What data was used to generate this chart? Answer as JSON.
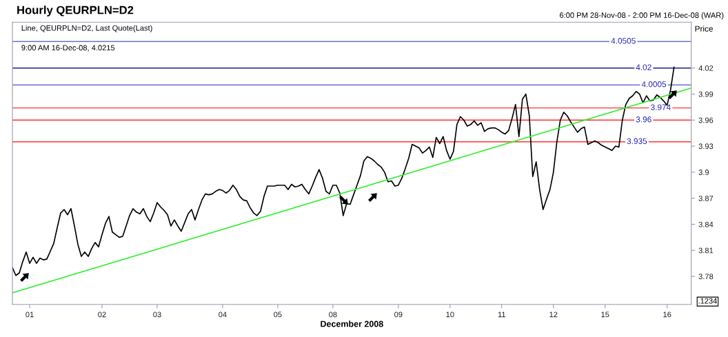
{
  "chart_data": {
    "type": "line",
    "title": "Hourly QEURPLN=D2",
    "subtitle": "6:00 PM 28-Nov-08 - 2:00 PM 16-Dec-08 (WAR)",
    "xlabel": "December 2008",
    "ylabel": "Price",
    "annotations": [
      "Line, QEURPLN=D2, Last Quote(Last)",
      "9:00 AM 16-Dec-08, 4.0215",
      ".1234"
    ],
    "categories": [
      null,
      null,
      null,
      null,
      null,
      "01",
      null,
      null,
      null,
      null,
      null,
      null,
      null,
      null,
      null,
      null,
      null,
      null,
      null,
      null,
      null,
      null,
      null,
      null,
      null,
      null,
      "02",
      null,
      null,
      null,
      null,
      null,
      null,
      null,
      null,
      null,
      null,
      null,
      null,
      null,
      null,
      null,
      "03",
      null,
      null,
      null,
      null,
      null,
      null,
      null,
      null,
      null,
      null,
      null,
      null,
      null,
      null,
      null,
      null,
      null,
      null,
      "04",
      null,
      null,
      null,
      null,
      null,
      null,
      null,
      null,
      null,
      null,
      null,
      null,
      null,
      null,
      null,
      "05",
      null,
      null,
      null,
      null,
      null,
      null,
      null,
      null,
      null,
      null,
      null,
      null,
      null,
      null,
      null,
      "08",
      null,
      null,
      null,
      null,
      null,
      null,
      null,
      null,
      null,
      null,
      null,
      null,
      null,
      null,
      null,
      null,
      null,
      null,
      "09",
      null,
      null,
      null,
      null,
      null,
      null,
      null,
      null,
      null,
      null,
      null,
      null,
      null,
      null,
      "10",
      null,
      null,
      null,
      null,
      null,
      null,
      null,
      null,
      null,
      null,
      null,
      null,
      null,
      null,
      "11",
      null,
      null,
      null,
      null,
      null,
      null,
      null,
      null,
      null,
      null,
      null,
      null,
      null,
      null,
      "12",
      null,
      null,
      null,
      null,
      null,
      null,
      null,
      null,
      null,
      null,
      null,
      null,
      null,
      null,
      "15",
      null,
      null,
      null,
      null,
      null,
      null,
      null,
      null,
      null,
      null,
      null,
      null,
      null,
      null,
      null,
      null,
      null,
      "16",
      null,
      null,
      null,
      null,
      null,
      null,
      null
    ],
    "ylim": [
      3.7477,
      4.0727
    ],
    "yticks": [
      3.78,
      3.81,
      3.84,
      3.87,
      3.9,
      3.93,
      3.96,
      3.99,
      4.02
    ],
    "grid": false,
    "legend": false,
    "marker": "none",
    "line_style": "solid",
    "series": [
      {
        "color": "#000000",
        "values": [
          3.79,
          3.781,
          3.784,
          3.797,
          3.808,
          3.795,
          3.802,
          3.795,
          3.801,
          3.799,
          3.8,
          3.809,
          3.818,
          3.836,
          3.853,
          3.857,
          3.851,
          3.858,
          3.838,
          3.817,
          3.803,
          3.808,
          3.803,
          3.812,
          3.819,
          3.814,
          3.828,
          3.841,
          3.849,
          3.831,
          3.828,
          3.825,
          3.826,
          3.838,
          3.85,
          3.858,
          3.854,
          3.852,
          3.858,
          3.849,
          3.843,
          3.853,
          3.865,
          3.86,
          3.856,
          3.851,
          3.838,
          3.845,
          3.838,
          3.832,
          3.842,
          3.852,
          3.857,
          3.845,
          3.857,
          3.868,
          3.875,
          3.874,
          3.875,
          3.878,
          3.88,
          3.879,
          3.876,
          3.879,
          3.885,
          3.88,
          3.872,
          3.868,
          3.867,
          3.859,
          3.853,
          3.85,
          3.855,
          3.872,
          3.884,
          3.884,
          3.884,
          3.885,
          3.885,
          3.885,
          3.88,
          3.886,
          3.883,
          3.884,
          3.886,
          3.88,
          3.875,
          3.884,
          3.894,
          3.903,
          3.893,
          3.878,
          3.875,
          3.885,
          3.885,
          3.876,
          3.85,
          3.864,
          3.863,
          3.874,
          3.885,
          3.896,
          3.913,
          3.918,
          3.916,
          3.913,
          3.909,
          3.906,
          3.9,
          3.889,
          3.89,
          3.884,
          3.885,
          3.893,
          3.904,
          3.916,
          3.932,
          3.93,
          3.928,
          3.922,
          3.925,
          3.929,
          3.917,
          3.94,
          3.933,
          3.941,
          3.925,
          3.915,
          3.924,
          3.955,
          3.964,
          3.96,
          3.953,
          3.955,
          3.959,
          3.954,
          3.957,
          3.947,
          3.95,
          3.951,
          3.951,
          3.949,
          3.946,
          3.944,
          3.948,
          3.962,
          3.978,
          3.941,
          3.984,
          3.99,
          3.965,
          3.895,
          3.912,
          3.88,
          3.857,
          3.869,
          3.88,
          3.9,
          3.935,
          3.96,
          3.969,
          3.965,
          3.958,
          3.952,
          3.946,
          3.95,
          3.952,
          3.932,
          3.934,
          3.936,
          3.934,
          3.931,
          3.929,
          3.927,
          3.925,
          3.93,
          3.929,
          3.96,
          3.978,
          3.985,
          3.988,
          3.993,
          3.99,
          3.98,
          3.988,
          3.982,
          3.983,
          3.989,
          3.986,
          3.982,
          3.977,
          3.995,
          4.021,
          null,
          null,
          null,
          null,
          null
        ]
      },
      {
        "color": "#33ee33",
        "values": [
          3.761,
          null,
          null,
          null,
          null,
          null,
          null,
          null,
          null,
          null,
          null,
          null,
          null,
          null,
          null,
          null,
          null,
          null,
          null,
          null,
          null,
          null,
          null,
          null,
          null,
          null,
          null,
          null,
          null,
          null,
          null,
          null,
          null,
          null,
          null,
          null,
          null,
          null,
          null,
          null,
          null,
          null,
          null,
          null,
          null,
          null,
          null,
          null,
          null,
          null,
          null,
          null,
          null,
          null,
          null,
          null,
          null,
          null,
          null,
          null,
          null,
          null,
          null,
          null,
          null,
          null,
          null,
          null,
          null,
          null,
          null,
          null,
          null,
          null,
          null,
          null,
          null,
          null,
          null,
          null,
          null,
          null,
          null,
          null,
          null,
          null,
          null,
          null,
          null,
          null,
          null,
          null,
          null,
          null,
          null,
          null,
          null,
          null,
          null,
          null,
          null,
          null,
          null,
          null,
          null,
          null,
          null,
          null,
          null,
          null,
          null,
          null,
          null,
          null,
          null,
          null,
          null,
          null,
          null,
          null,
          null,
          null,
          null,
          null,
          null,
          null,
          null,
          null,
          null,
          null,
          null,
          null,
          null,
          null,
          null,
          null,
          null,
          null,
          null,
          null,
          null,
          null,
          null,
          null,
          null,
          null,
          null,
          null,
          null,
          null,
          null,
          null,
          null,
          null,
          null,
          null,
          null,
          null,
          null,
          null,
          null,
          null,
          null,
          null,
          null,
          null,
          null,
          null,
          null,
          null,
          null,
          null,
          null,
          null,
          null,
          null,
          null,
          null,
          null,
          null,
          null,
          null,
          null,
          null,
          null,
          null,
          null,
          null,
          null,
          null,
          null,
          null,
          null,
          null,
          null,
          null,
          null,
          3.997
        ]
      }
    ],
    "ref_lines": [
      {
        "axis": "y",
        "value": 4.0505,
        "label": "4.0505",
        "color": "#7070d0"
      },
      {
        "axis": "y",
        "value": 4.02,
        "label": "4.02",
        "color": "#1c1c8c"
      },
      {
        "axis": "y",
        "value": 4.0005,
        "label": "4.0005",
        "color": "#7070d0"
      },
      {
        "axis": "y",
        "value": 3.974,
        "label": "3.974",
        "color": "#ff3333"
      },
      {
        "axis": "y",
        "value": 3.96,
        "label": "3.96",
        "color": "#ff3333"
      },
      {
        "axis": "y",
        "value": 3.935,
        "label": "3.935",
        "color": "#ff3333"
      }
    ]
  }
}
